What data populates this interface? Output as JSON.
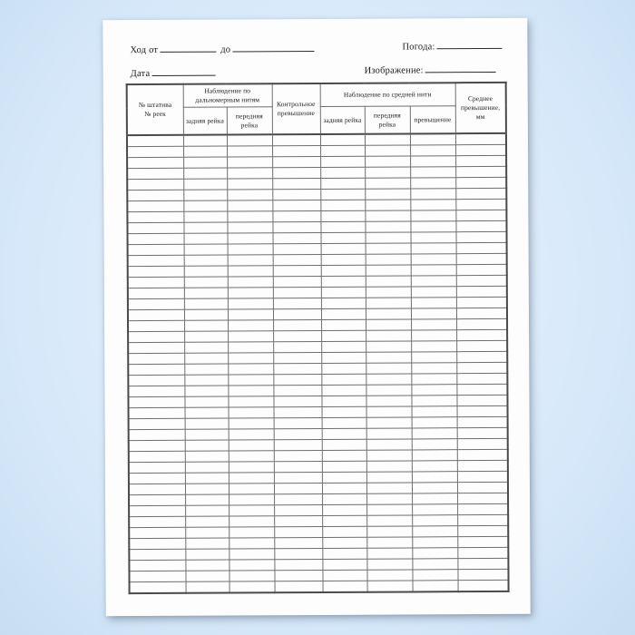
{
  "form_header": {
    "route_from_label": "Ход от",
    "route_to_label": "до",
    "weather_label": "Погода:",
    "date_label": "Дата",
    "image_label": "Изображение:"
  },
  "table": {
    "stand_header_line1": "№ штатива",
    "stand_header_line2": "№ реек",
    "distance_wires_group_header": "Наблюдение по дальномерным нитям",
    "middle_wire_group_header": "Наблюдение по средней нити",
    "back_rod_header": "задняя рейка",
    "front_rod_header": "передняя рейка",
    "control_elevation_header": "Контрольное превышение",
    "elevation_header": "превышение",
    "mean_elevation_header": "Среднее превышение, мм",
    "empty_row_count": 42,
    "column_count": 8
  },
  "colors": {
    "background_blue": "#d8e9fa",
    "paper_white": "#fdfdfe",
    "grid_line": "#6f6f6f",
    "outer_border": "#4a4a4a",
    "text": "#1c1c1c"
  }
}
